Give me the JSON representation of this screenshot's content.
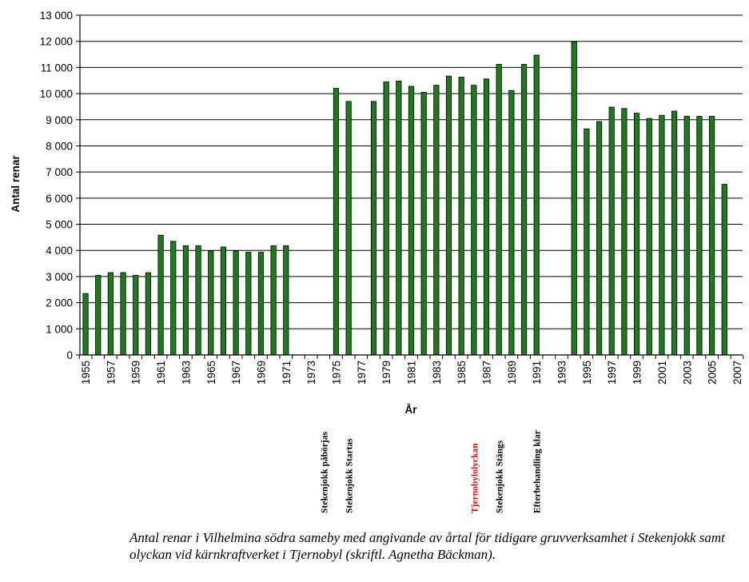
{
  "chart_data": {
    "type": "bar",
    "title": "",
    "xlabel": "År",
    "ylabel": "Antal renar",
    "ylim": [
      0,
      13000
    ],
    "yticks": [
      0,
      1000,
      2000,
      3000,
      4000,
      5000,
      6000,
      7000,
      8000,
      9000,
      10000,
      11000,
      12000,
      13000
    ],
    "ytick_labels": [
      "0",
      "1 000",
      "2 000",
      "3 000",
      "4 000",
      "5 000",
      "6 000",
      "7 000",
      "8 000",
      "9 000",
      "10 000",
      "11 000",
      "12 000",
      "13 000"
    ],
    "xtick_labels": [
      "1955",
      "1957",
      "1959",
      "1961",
      "1963",
      "1965",
      "1967",
      "1969",
      "1971",
      "1973",
      "1975",
      "1977",
      "1979",
      "1981",
      "1983",
      "1985",
      "1987",
      "1989",
      "1991",
      "1993",
      "1995",
      "1997",
      "1999",
      "2001",
      "2003",
      "2005",
      "2007"
    ],
    "grid": "horizontal",
    "bar_color": "#1e7a1e",
    "categories": [
      1955,
      1956,
      1957,
      1958,
      1959,
      1960,
      1961,
      1962,
      1963,
      1964,
      1965,
      1966,
      1967,
      1968,
      1969,
      1970,
      1971,
      1972,
      1973,
      1974,
      1975,
      1976,
      1977,
      1978,
      1979,
      1980,
      1981,
      1982,
      1983,
      1984,
      1985,
      1986,
      1987,
      1988,
      1989,
      1990,
      1991,
      1992,
      1993,
      1994,
      1995,
      1996,
      1997,
      1998,
      1999,
      2000,
      2001,
      2002,
      2003,
      2004,
      2005,
      2006,
      2007
    ],
    "values": [
      2350,
      3050,
      3150,
      3150,
      3050,
      3150,
      4580,
      4350,
      4180,
      4180,
      3980,
      4130,
      3980,
      3930,
      3930,
      4180,
      4180,
      null,
      null,
      null,
      10200,
      9700,
      null,
      9700,
      10450,
      10480,
      10280,
      10050,
      10320,
      10670,
      10630,
      10320,
      10560,
      11120,
      10120,
      11120,
      11470,
      null,
      null,
      11980,
      8650,
      8930,
      9480,
      9430,
      9250,
      9050,
      9170,
      9330,
      9130,
      9130,
      9130,
      6530,
      null
    ],
    "events": [
      {
        "label": "Stekenjokk påbörjas",
        "year": 1974,
        "color": "#000000"
      },
      {
        "label": "Stekenjokk Startas",
        "year": 1976,
        "color": "#000000"
      },
      {
        "label": "Tjernobylolyckan",
        "year": 1986,
        "color": "#e01010"
      },
      {
        "label": "Stekenjokk Stängs",
        "year": 1988,
        "color": "#000000"
      },
      {
        "label": "Efterbehandling klar",
        "year": 1991,
        "color": "#000000"
      }
    ]
  },
  "caption": "Antal renar i Vilhelmina södra sameby med angivande av årtal för tidigare gruvverksamhet i Stekenjokk samt olyckan vid kärnkraftverket i Tjernobyl (skriftl. Agnetha Bäckman)."
}
